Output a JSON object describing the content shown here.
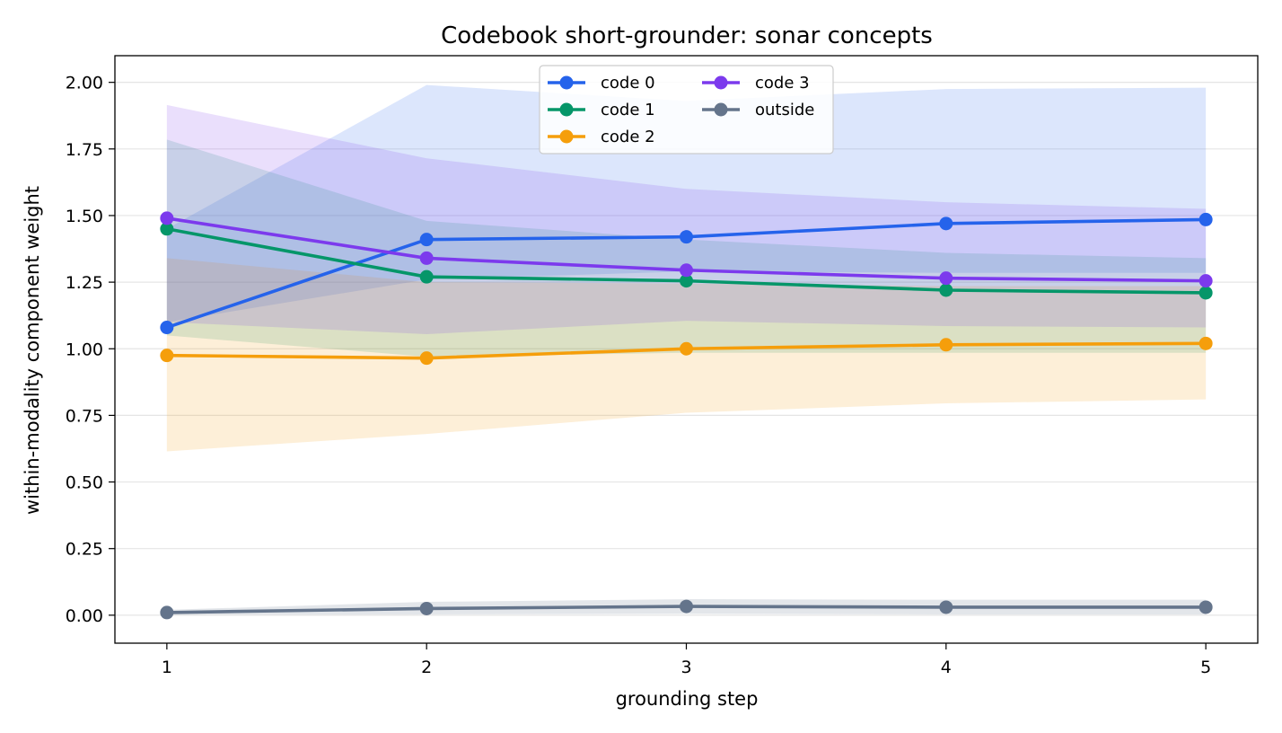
{
  "chart_data": {
    "type": "line",
    "title": "Codebook short-grounder: sonar concepts",
    "xlabel": "grounding step",
    "ylabel": "within-modality component weight",
    "x": [
      1,
      2,
      3,
      4,
      5
    ],
    "xlim": [
      0.8,
      5.2
    ],
    "ylim": [
      -0.105,
      2.1
    ],
    "xticks": [
      "1",
      "2",
      "3",
      "4",
      "5"
    ],
    "yticks": [
      "0.00",
      "0.25",
      "0.50",
      "0.75",
      "1.00",
      "1.25",
      "1.50",
      "1.75",
      "2.00"
    ],
    "grid": "horizontal",
    "legend_position": "top-center",
    "legend_columns": 2,
    "series": [
      {
        "name": "code 0",
        "color": "#2563eb",
        "values": [
          1.08,
          1.41,
          1.42,
          1.47,
          1.485
        ],
        "upper": [
          1.45,
          1.99,
          1.93,
          1.975,
          1.98
        ],
        "lower": [
          1.1,
          1.26,
          1.29,
          1.285,
          1.285
        ],
        "band_opacity": 0.16
      },
      {
        "name": "code 1",
        "color": "#059669",
        "values": [
          1.45,
          1.27,
          1.255,
          1.22,
          1.21
        ],
        "upper": [
          1.785,
          1.48,
          1.41,
          1.36,
          1.34
        ],
        "lower": [
          1.05,
          0.97,
          0.985,
          0.985,
          0.985
        ],
        "band_opacity": 0.16
      },
      {
        "name": "code 2",
        "color": "#f59e0b",
        "values": [
          0.975,
          0.965,
          1.0,
          1.015,
          1.02
        ],
        "upper": [
          1.34,
          1.25,
          1.245,
          1.235,
          1.235
        ],
        "lower": [
          0.615,
          0.68,
          0.76,
          0.795,
          0.81
        ],
        "band_opacity": 0.16
      },
      {
        "name": "code 3",
        "color": "#7c3aed",
        "values": [
          1.49,
          1.34,
          1.295,
          1.265,
          1.255
        ],
        "upper": [
          1.915,
          1.715,
          1.6,
          1.55,
          1.525
        ],
        "lower": [
          1.1,
          1.055,
          1.105,
          1.085,
          1.08
        ],
        "band_opacity": 0.16
      },
      {
        "name": "outside",
        "color": "#64748b",
        "values": [
          0.01,
          0.025,
          0.033,
          0.03,
          0.03
        ],
        "upper": [
          0.02,
          0.05,
          0.06,
          0.058,
          0.058
        ],
        "lower": [
          0.002,
          0.003,
          0.005,
          0.003,
          0.003
        ],
        "band_opacity": 0.18
      }
    ]
  }
}
